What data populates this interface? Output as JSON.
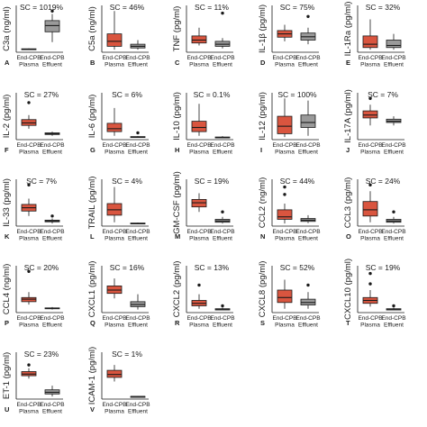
{
  "colors": {
    "plasma": "#d9553f",
    "effluent": "#9a9a9a",
    "stroke": "#1a1a1a"
  },
  "categories": [
    "End-CPB Plasma",
    "End-CPB Effluent"
  ],
  "tick_plasma": [
    "End-CPB",
    "Plasma"
  ],
  "tick_effluent": [
    "End-CPB",
    "Effluent"
  ],
  "chart_data": [
    {
      "panel": "A",
      "type": "box",
      "ylabel": "C3a (ng/ml)",
      "sc": "SC = 1019%",
      "yrange": [
        0,
        1.0
      ],
      "xtick_labels": true,
      "boxes": [
        {
          "group": "End-CPB Plasma",
          "min": 0.01,
          "q1": 0.02,
          "median": 0.03,
          "q3": 0.04,
          "max": 0.05,
          "outliers": []
        },
        {
          "group": "End-CPB Effluent",
          "min": 0.2,
          "q1": 0.45,
          "median": 0.6,
          "q3": 0.72,
          "max": 0.88,
          "outliers": [
            0.95
          ]
        }
      ]
    },
    {
      "panel": "B",
      "type": "box",
      "ylabel": "C5a (ng/ml)",
      "sc": "SC = 46%",
      "yrange": [
        0,
        1.0
      ],
      "xtick_labels": true,
      "boxes": [
        {
          "group": "End-CPB Plasma",
          "min": 0.02,
          "q1": 0.1,
          "median": 0.22,
          "q3": 0.4,
          "max": 0.95,
          "outliers": []
        },
        {
          "group": "End-CPB Effluent",
          "min": 0.02,
          "q1": 0.06,
          "median": 0.1,
          "q3": 0.15,
          "max": 0.25,
          "outliers": []
        }
      ]
    },
    {
      "panel": "C",
      "type": "box",
      "ylabel": "TNF (pg/ml)",
      "sc": "SC = 11%",
      "yrange": [
        0,
        1.0
      ],
      "xtick_labels": true,
      "boxes": [
        {
          "group": "End-CPB Plasma",
          "min": 0.12,
          "q1": 0.18,
          "median": 0.25,
          "q3": 0.35,
          "max": 0.55,
          "outliers": []
        },
        {
          "group": "End-CPB Effluent",
          "min": 0.05,
          "q1": 0.1,
          "median": 0.15,
          "q3": 0.22,
          "max": 0.3,
          "outliers": [
            0.9
          ]
        }
      ]
    },
    {
      "panel": "D",
      "type": "box",
      "ylabel": "IL-1β (pg/ml)",
      "sc": "SC = 75%",
      "yrange": [
        0,
        1.0
      ],
      "xtick_labels": true,
      "boxes": [
        {
          "group": "End-CPB Plasma",
          "min": 0.22,
          "q1": 0.32,
          "median": 0.4,
          "q3": 0.48,
          "max": 0.62,
          "outliers": []
        },
        {
          "group": "End-CPB Effluent",
          "min": 0.15,
          "q1": 0.25,
          "median": 0.33,
          "q3": 0.42,
          "max": 0.55,
          "outliers": [
            0.82
          ]
        }
      ]
    },
    {
      "panel": "E",
      "type": "box",
      "ylabel": "IL-1Ra (pg/ml)",
      "sc": "SC = 32%",
      "yrange": [
        0,
        1.0
      ],
      "xtick_labels": true,
      "boxes": [
        {
          "group": "End-CPB Plasma",
          "min": 0.02,
          "q1": 0.07,
          "median": 0.15,
          "q3": 0.35,
          "max": 0.75,
          "outliers": []
        },
        {
          "group": "End-CPB Effluent",
          "min": 0.02,
          "q1": 0.07,
          "median": 0.12,
          "q3": 0.25,
          "max": 0.4,
          "outliers": []
        }
      ]
    },
    {
      "panel": "F",
      "type": "box",
      "ylabel": "IL-2 (pg/ml)",
      "sc": "SC = 27%",
      "yrange": [
        0,
        1.0
      ],
      "xtick_labels": true,
      "boxes": [
        {
          "group": "End-CPB Plasma",
          "min": 0.22,
          "q1": 0.3,
          "median": 0.36,
          "q3": 0.44,
          "max": 0.55,
          "outliers": [
            0.85
          ]
        },
        {
          "group": "End-CPB Effluent",
          "min": 0.05,
          "q1": 0.08,
          "median": 0.1,
          "q3": 0.12,
          "max": 0.15,
          "outliers": []
        }
      ]
    },
    {
      "panel": "G",
      "type": "box",
      "ylabel": "IL-6 (pg/ml)",
      "sc": "SC = 6%",
      "yrange": [
        0,
        1.0
      ],
      "xtick_labels": true,
      "boxes": [
        {
          "group": "End-CPB Plasma",
          "min": 0.05,
          "q1": 0.15,
          "median": 0.22,
          "q3": 0.35,
          "max": 0.72,
          "outliers": []
        },
        {
          "group": "End-CPB Effluent",
          "min": 0.01,
          "q1": 0.02,
          "median": 0.02,
          "q3": 0.03,
          "max": 0.04,
          "outliers": [
            0.12
          ]
        }
      ]
    },
    {
      "panel": "H",
      "type": "box",
      "ylabel": "IL-10 (pg/ml)",
      "sc": "SC = 0.1%",
      "yrange": [
        0,
        1.0
      ],
      "xtick_labels": true,
      "boxes": [
        {
          "group": "End-CPB Plasma",
          "min": 0.05,
          "q1": 0.15,
          "median": 0.25,
          "q3": 0.4,
          "max": 0.82,
          "outliers": []
        },
        {
          "group": "End-CPB Effluent",
          "min": 0.0,
          "q1": 0.01,
          "median": 0.01,
          "q3": 0.02,
          "max": 0.04,
          "outliers": []
        }
      ]
    },
    {
      "panel": "I",
      "type": "box",
      "ylabel": "IL-12 (pg/ml)",
      "sc": "SC = 100%",
      "yrange": [
        0,
        1.0
      ],
      "xtick_labels": true,
      "boxes": [
        {
          "group": "End-CPB Plasma",
          "min": 0.02,
          "q1": 0.1,
          "median": 0.28,
          "q3": 0.52,
          "max": 0.95,
          "outliers": []
        },
        {
          "group": "End-CPB Effluent",
          "min": 0.05,
          "q1": 0.25,
          "median": 0.37,
          "q3": 0.55,
          "max": 0.9,
          "outliers": []
        }
      ]
    },
    {
      "panel": "J",
      "type": "box",
      "ylabel": "IL-17A (pg/ml)",
      "sc": "SC = 7%",
      "yrange": [
        0,
        1.0
      ],
      "xtick_labels": true,
      "boxes": [
        {
          "group": "End-CPB Plasma",
          "min": 0.3,
          "q1": 0.48,
          "median": 0.55,
          "q3": 0.65,
          "max": 0.8,
          "outliers": [
            0.95
          ]
        },
        {
          "group": "End-CPB Effluent",
          "min": 0.3,
          "q1": 0.37,
          "median": 0.4,
          "q3": 0.45,
          "max": 0.52,
          "outliers": []
        }
      ]
    },
    {
      "panel": "K",
      "type": "box",
      "ylabel": "IL-33 (pg/ml)",
      "sc": "SC = 7%",
      "yrange": [
        0,
        1.0
      ],
      "xtick_labels": true,
      "boxes": [
        {
          "group": "End-CPB Plasma",
          "min": 0.2,
          "q1": 0.32,
          "median": 0.4,
          "q3": 0.48,
          "max": 0.62,
          "outliers": [
            0.95
          ]
        },
        {
          "group": "End-CPB Effluent",
          "min": 0.02,
          "q1": 0.06,
          "median": 0.08,
          "q3": 0.1,
          "max": 0.14,
          "outliers": [
            0.2
          ]
        }
      ]
    },
    {
      "panel": "L",
      "type": "box",
      "ylabel": "TRAIL (pg/ml)",
      "sc": "SC = 4%",
      "yrange": [
        0,
        1.0
      ],
      "xtick_labels": true,
      "boxes": [
        {
          "group": "End-CPB Plasma",
          "min": 0.05,
          "q1": 0.22,
          "median": 0.35,
          "q3": 0.5,
          "max": 0.9,
          "outliers": []
        },
        {
          "group": "End-CPB Effluent",
          "min": 0.01,
          "q1": 0.02,
          "median": 0.02,
          "q3": 0.03,
          "max": 0.04,
          "outliers": []
        }
      ]
    },
    {
      "panel": "M",
      "type": "box",
      "ylabel": "GM-CSF (pg/ml)",
      "sc": "SC = 19%",
      "yrange": [
        0,
        1.0
      ],
      "xtick_labels": true,
      "boxes": [
        {
          "group": "End-CPB Plasma",
          "min": 0.3,
          "q1": 0.42,
          "median": 0.52,
          "q3": 0.6,
          "max": 0.75,
          "outliers": []
        },
        {
          "group": "End-CPB Effluent",
          "min": 0.02,
          "q1": 0.05,
          "median": 0.08,
          "q3": 0.12,
          "max": 0.18,
          "outliers": [
            0.3
          ]
        }
      ]
    },
    {
      "panel": "N",
      "type": "box",
      "ylabel": "CCL2 (ng/ml)",
      "sc": "SC = 44%",
      "yrange": [
        0,
        1.0
      ],
      "xtick_labels": true,
      "boxes": [
        {
          "group": "End-CPB Plasma",
          "min": 0.02,
          "q1": 0.12,
          "median": 0.18,
          "q3": 0.35,
          "max": 0.5,
          "outliers": [
            0.72,
            0.9
          ]
        },
        {
          "group": "End-CPB Effluent",
          "min": 0.03,
          "q1": 0.07,
          "median": 0.1,
          "q3": 0.14,
          "max": 0.22,
          "outliers": []
        }
      ]
    },
    {
      "panel": "O",
      "type": "box",
      "ylabel": "CCL3 (pg/ml)",
      "sc": "SC = 24%",
      "yrange": [
        0,
        1.0
      ],
      "xtick_labels": true,
      "boxes": [
        {
          "group": "End-CPB Plasma",
          "min": 0.05,
          "q1": 0.2,
          "median": 0.35,
          "q3": 0.55,
          "max": 0.8,
          "outliers": [
            0.95
          ]
        },
        {
          "group": "End-CPB Effluent",
          "min": 0.02,
          "q1": 0.05,
          "median": 0.08,
          "q3": 0.12,
          "max": 0.18,
          "outliers": [
            0.3
          ]
        }
      ]
    },
    {
      "panel": "P",
      "type": "box",
      "ylabel": "CCL4 (ng/ml)",
      "sc": "SC = 20%",
      "yrange": [
        0,
        1.0
      ],
      "xtick_labels": true,
      "boxes": [
        {
          "group": "End-CPB Plasma",
          "min": 0.15,
          "q1": 0.22,
          "median": 0.28,
          "q3": 0.32,
          "max": 0.45,
          "outliers": [
            0.95
          ]
        },
        {
          "group": "End-CPB Effluent",
          "min": 0.03,
          "q1": 0.05,
          "median": 0.06,
          "q3": 0.07,
          "max": 0.09,
          "outliers": []
        }
      ]
    },
    {
      "panel": "Q",
      "type": "box",
      "ylabel": "CXCL1 (pg/ml)",
      "sc": "SC = 16%",
      "yrange": [
        0,
        1.0
      ],
      "xtick_labels": true,
      "boxes": [
        {
          "group": "End-CPB Plasma",
          "min": 0.3,
          "q1": 0.42,
          "median": 0.5,
          "q3": 0.6,
          "max": 0.78,
          "outliers": []
        },
        {
          "group": "End-CPB Effluent",
          "min": 0.03,
          "q1": 0.1,
          "median": 0.15,
          "q3": 0.22,
          "max": 0.4,
          "outliers": []
        }
      ]
    },
    {
      "panel": "R",
      "type": "box",
      "ylabel": "CXCL2 (pg/ml)",
      "sc": "SC = 13%",
      "yrange": [
        0,
        1.0
      ],
      "xtick_labels": true,
      "boxes": [
        {
          "group": "End-CPB Plasma",
          "min": 0.05,
          "q1": 0.12,
          "median": 0.18,
          "q3": 0.25,
          "max": 0.4,
          "outliers": [
            0.62
          ]
        },
        {
          "group": "End-CPB Effluent",
          "min": 0.01,
          "q1": 0.02,
          "median": 0.03,
          "q3": 0.05,
          "max": 0.08,
          "outliers": [
            0.12
          ]
        }
      ]
    },
    {
      "panel": "S",
      "type": "box",
      "ylabel": "CXCL8 (pg/ml)",
      "sc": "SC = 52%",
      "yrange": [
        0,
        1.0
      ],
      "xtick_labels": true,
      "boxes": [
        {
          "group": "End-CPB Plasma",
          "min": 0.05,
          "q1": 0.2,
          "median": 0.32,
          "q3": 0.5,
          "max": 0.75,
          "outliers": []
        },
        {
          "group": "End-CPB Effluent",
          "min": 0.05,
          "q1": 0.14,
          "median": 0.2,
          "q3": 0.28,
          "max": 0.45,
          "outliers": [
            0.62
          ]
        }
      ]
    },
    {
      "panel": "T",
      "type": "box",
      "ylabel": "CXCL10 (pg/ml)",
      "sc": "SC = 19%",
      "yrange": [
        0,
        1.0
      ],
      "xtick_labels": true,
      "boxes": [
        {
          "group": "End-CPB Plasma",
          "min": 0.1,
          "q1": 0.18,
          "median": 0.25,
          "q3": 0.32,
          "max": 0.5,
          "outliers": [
            0.65,
            0.9
          ]
        },
        {
          "group": "End-CPB Effluent",
          "min": 0.01,
          "q1": 0.02,
          "median": 0.03,
          "q3": 0.05,
          "max": 0.08,
          "outliers": [
            0.12
          ]
        }
      ]
    },
    {
      "panel": "U",
      "type": "box",
      "ylabel": "ET-1 (pg/ml)",
      "sc": "SC = 23%",
      "yrange": [
        0,
        1.0
      ],
      "xtick_labels": true,
      "boxes": [
        {
          "group": "End-CPB Plasma",
          "min": 0.45,
          "q1": 0.52,
          "median": 0.56,
          "q3": 0.62,
          "max": 0.7,
          "outliers": [
            0.78
          ]
        },
        {
          "group": "End-CPB Effluent",
          "min": 0.02,
          "q1": 0.08,
          "median": 0.12,
          "q3": 0.18,
          "max": 0.28,
          "outliers": []
        }
      ]
    },
    {
      "panel": "V",
      "type": "box",
      "ylabel": "ICAM-1 (pg/ml)",
      "sc": "SC = 1%",
      "yrange": [
        0,
        1.0
      ],
      "xtick_labels": true,
      "boxes": [
        {
          "group": "End-CPB Plasma",
          "min": 0.38,
          "q1": 0.48,
          "median": 0.55,
          "q3": 0.65,
          "max": 0.78,
          "outliers": []
        },
        {
          "group": "End-CPB Effluent",
          "min": 0.01,
          "q1": 0.01,
          "median": 0.02,
          "q3": 0.02,
          "max": 0.03,
          "outliers": []
        }
      ]
    }
  ]
}
